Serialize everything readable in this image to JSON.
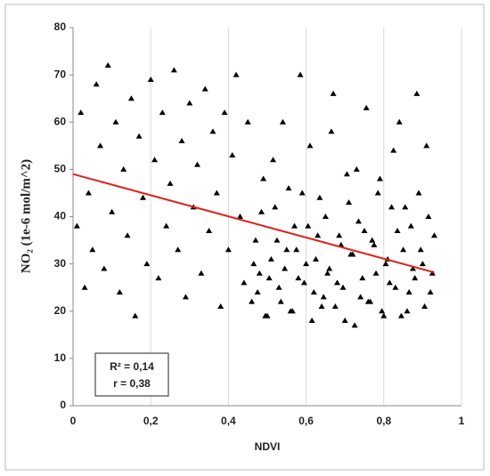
{
  "chart_data": {
    "type": "scatter",
    "xlabel": "NDVI",
    "ylabel": "NO₂ (1e-6 mol/m^2)",
    "xlim": [
      0,
      1
    ],
    "ylim": [
      0,
      80
    ],
    "xticks": [
      0,
      {
        "value": 0.2,
        "label": "0,2"
      },
      {
        "value": 0.4,
        "label": "0,4"
      },
      {
        "value": 0.6,
        "label": "0,6"
      },
      {
        "value": 0.8,
        "label": "0,8"
      },
      1
    ],
    "yticks": [
      0,
      10,
      20,
      30,
      40,
      50,
      60,
      70,
      80
    ],
    "grid": "x",
    "annotations": [
      "R² = 0,14",
      "r = 0,38"
    ],
    "series": [
      {
        "color": "#000000",
        "marker": "triangle",
        "x": [
          0.01,
          0.02,
          0.03,
          0.04,
          0.05,
          0.06,
          0.07,
          0.08,
          0.09,
          0.1,
          0.11,
          0.12,
          0.13,
          0.14,
          0.15,
          0.16,
          0.17,
          0.18,
          0.19,
          0.2,
          0.21,
          0.22,
          0.23,
          0.24,
          0.25,
          0.26,
          0.27,
          0.28,
          0.29,
          0.3,
          0.31,
          0.32,
          0.33,
          0.34,
          0.35,
          0.36,
          0.37,
          0.38,
          0.39,
          0.4,
          0.41,
          0.42,
          0.43,
          0.44,
          0.45,
          0.46,
          0.47,
          0.48,
          0.49,
          0.5,
          0.51,
          0.52,
          0.53,
          0.54,
          0.55,
          0.56,
          0.57,
          0.58,
          0.59,
          0.6,
          0.61,
          0.62,
          0.63,
          0.64,
          0.65,
          0.66,
          0.67,
          0.68,
          0.69,
          0.7,
          0.71,
          0.72,
          0.73,
          0.74,
          0.75,
          0.76,
          0.77,
          0.78,
          0.79,
          0.8,
          0.81,
          0.82,
          0.83,
          0.84,
          0.85,
          0.86,
          0.87,
          0.88,
          0.89,
          0.9,
          0.91,
          0.92,
          0.93,
          0.465,
          0.475,
          0.485,
          0.495,
          0.505,
          0.515,
          0.525,
          0.535,
          0.545,
          0.555,
          0.565,
          0.575,
          0.585,
          0.595,
          0.605,
          0.615,
          0.625,
          0.635,
          0.645,
          0.655,
          0.665,
          0.675,
          0.685,
          0.695,
          0.705,
          0.715,
          0.725,
          0.735,
          0.745,
          0.755,
          0.765,
          0.775,
          0.785,
          0.795,
          0.805,
          0.815,
          0.825,
          0.835,
          0.845,
          0.855,
          0.865,
          0.875,
          0.885,
          0.895,
          0.905,
          0.915,
          0.925
        ],
        "values": [
          38,
          62,
          25,
          45,
          33,
          68,
          55,
          29,
          72,
          41,
          60,
          24,
          50,
          36,
          65,
          19,
          57,
          44,
          30,
          69,
          52,
          27,
          62,
          38,
          47,
          71,
          33,
          56,
          23,
          64,
          42,
          51,
          28,
          67,
          37,
          58,
          45,
          21,
          62,
          33,
          53,
          70,
          40,
          26,
          60,
          22,
          35,
          28,
          48,
          19,
          31,
          42,
          25,
          60,
          33,
          20,
          38,
          27,
          45,
          30,
          55,
          24,
          36,
          21,
          40,
          29,
          66,
          26,
          34,
          18,
          43,
          32,
          50,
          23,
          37,
          22,
          35,
          28,
          48,
          19,
          31,
          42,
          25,
          60,
          33,
          20,
          38,
          27,
          45,
          30,
          55,
          24,
          36,
          30,
          24,
          41,
          19,
          27,
          52,
          35,
          22,
          29,
          46,
          20,
          33,
          70,
          26,
          38,
          18,
          31,
          44,
          23,
          28,
          58,
          21,
          36,
          25,
          49,
          32,
          17,
          39,
          27,
          63,
          22,
          34,
          45,
          20,
          30,
          26,
          54,
          37,
          19,
          42,
          24,
          29,
          66,
          33,
          21,
          40,
          28
        ]
      }
    ],
    "trendline": {
      "color": "#e0201b",
      "x": [
        0,
        0.93
      ],
      "values": [
        49,
        28.2
      ]
    }
  }
}
